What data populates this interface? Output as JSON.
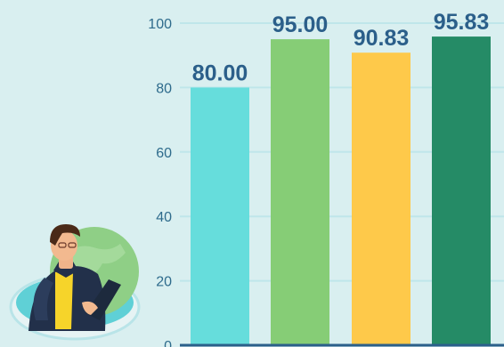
{
  "chart_data": {
    "type": "bar",
    "categories": [
      "",
      "",
      "",
      ""
    ],
    "values": [
      80.0,
      95.0,
      90.83,
      95.83
    ],
    "value_labels": [
      "80.00",
      "95.00",
      "90.83",
      "95.83"
    ],
    "colors": [
      "#66dddc",
      "#86cd76",
      "#fec94a",
      "#258b66"
    ],
    "ylim": [
      0,
      100
    ],
    "yticks": [
      0,
      20,
      40,
      60,
      80,
      100
    ],
    "grid": true,
    "legend": "none",
    "title": "",
    "xlabel": "",
    "ylabel": ""
  },
  "style": {
    "background": "#d9eff0",
    "gridline_color": "#bfe6ea",
    "axis_color": "#2b5f8a",
    "label_color": "#2b5f8a"
  },
  "illustration": {
    "icon": "businessman-with-globe-icon"
  }
}
